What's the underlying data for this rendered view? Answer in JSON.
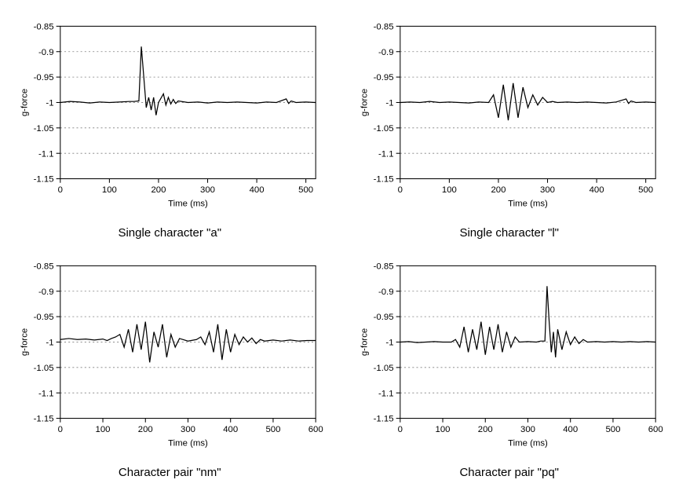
{
  "global": {
    "background_color": "#ffffff",
    "axis_color": "#000000",
    "grid_color": "#808080",
    "text_color": "#000000",
    "line_color": "#000000",
    "tick_font_size": 11,
    "caption_font_size": 15,
    "axis_label_font_size": 11
  },
  "panels": [
    {
      "id": "chart-a",
      "caption": "Single character \"a\"",
      "ylabel": "g-force",
      "xlabel": "Time (ms)",
      "xlim": [
        0,
        520
      ],
      "ylim": [
        -1.15,
        -0.85
      ],
      "xticks": [
        0,
        100,
        200,
        300,
        400,
        500
      ],
      "yticks": [
        -1.15,
        -1.1,
        -1.05,
        -1,
        -0.95,
        -0.9,
        -0.85
      ],
      "ygrid_at": [
        -1.1,
        -1.05,
        -1,
        -0.95,
        -0.9
      ],
      "data": {
        "x": [
          0,
          20,
          40,
          60,
          80,
          100,
          120,
          140,
          150,
          160,
          165,
          170,
          175,
          180,
          185,
          190,
          195,
          200,
          210,
          215,
          220,
          225,
          230,
          235,
          240,
          260,
          280,
          300,
          320,
          340,
          360,
          380,
          400,
          420,
          440,
          460,
          465,
          470,
          480,
          500,
          520
        ],
        "y": [
          -1.0,
          -0.998,
          -0.999,
          -1.001,
          -0.999,
          -1.0,
          -0.999,
          -0.998,
          -0.998,
          -0.997,
          -0.89,
          -0.95,
          -1.01,
          -0.99,
          -1.015,
          -0.99,
          -1.025,
          -1.0,
          -0.983,
          -1.005,
          -0.99,
          -1.003,
          -0.994,
          -1.002,
          -0.997,
          -1.0,
          -0.999,
          -1.001,
          -0.999,
          -1.0,
          -0.999,
          -1.0,
          -1.001,
          -0.999,
          -1.0,
          -0.993,
          -1.002,
          -0.997,
          -1.0,
          -0.999,
          -1.0
        ]
      }
    },
    {
      "id": "chart-l",
      "caption": "Single character \"l\"",
      "ylabel": "g-force",
      "xlabel": "Time (ms)",
      "xlim": [
        0,
        520
      ],
      "ylim": [
        -1.15,
        -0.85
      ],
      "xticks": [
        0,
        100,
        200,
        300,
        400,
        500
      ],
      "yticks": [
        -1.15,
        -1.1,
        -1.05,
        -1,
        -0.95,
        -0.9,
        -0.85
      ],
      "ygrid_at": [
        -1.1,
        -1.05,
        -1,
        -0.95,
        -0.9
      ],
      "data": {
        "x": [
          0,
          20,
          40,
          60,
          80,
          100,
          120,
          140,
          160,
          180,
          190,
          200,
          210,
          220,
          230,
          240,
          250,
          260,
          270,
          280,
          290,
          300,
          310,
          320,
          340,
          360,
          380,
          400,
          420,
          440,
          460,
          465,
          470,
          480,
          500,
          520
        ],
        "y": [
          -1.0,
          -0.999,
          -1.0,
          -0.998,
          -1.0,
          -0.999,
          -1.0,
          -1.001,
          -0.999,
          -1.0,
          -0.985,
          -1.03,
          -0.965,
          -1.035,
          -0.962,
          -1.03,
          -0.97,
          -1.01,
          -0.985,
          -1.005,
          -0.99,
          -1.0,
          -0.998,
          -1.0,
          -0.999,
          -1.0,
          -0.999,
          -1.0,
          -1.001,
          -0.999,
          -0.993,
          -1.002,
          -0.997,
          -1.0,
          -0.999,
          -1.0
        ]
      }
    },
    {
      "id": "chart-nm",
      "caption": "Character pair \"nm\"",
      "ylabel": "g-force",
      "xlabel": "Time (ms)",
      "xlim": [
        0,
        600
      ],
      "ylim": [
        -1.15,
        -0.85
      ],
      "xticks": [
        0,
        100,
        200,
        300,
        400,
        500,
        600
      ],
      "yticks": [
        -1.15,
        -1.1,
        -1.05,
        -1,
        -0.95,
        -0.9,
        -0.85
      ],
      "ygrid_at": [
        -1.1,
        -1.05,
        -1,
        -0.95,
        -0.9
      ],
      "data": {
        "x": [
          0,
          20,
          40,
          60,
          80,
          100,
          110,
          120,
          130,
          140,
          150,
          160,
          170,
          180,
          190,
          200,
          210,
          220,
          230,
          240,
          250,
          260,
          270,
          280,
          300,
          320,
          330,
          340,
          350,
          360,
          370,
          380,
          390,
          400,
          410,
          420,
          430,
          440,
          450,
          460,
          470,
          480,
          500,
          520,
          540,
          560,
          580,
          600
        ],
        "y": [
          -0.995,
          -0.993,
          -0.995,
          -0.994,
          -0.996,
          -0.994,
          -0.997,
          -0.993,
          -0.99,
          -0.985,
          -1.01,
          -0.975,
          -1.02,
          -0.965,
          -1.015,
          -0.96,
          -1.04,
          -0.98,
          -1.01,
          -0.965,
          -1.03,
          -0.985,
          -1.01,
          -0.993,
          -0.998,
          -0.995,
          -0.99,
          -1.005,
          -0.98,
          -1.02,
          -0.965,
          -1.035,
          -0.975,
          -1.02,
          -0.985,
          -1.005,
          -0.99,
          -1.0,
          -0.992,
          -1.003,
          -0.995,
          -0.998,
          -0.996,
          -0.998,
          -0.996,
          -0.998,
          -0.997,
          -0.997
        ]
      }
    },
    {
      "id": "chart-pq",
      "caption": "Character pair \"pq\"",
      "ylabel": "g-force",
      "xlabel": "Time (ms)",
      "xlim": [
        0,
        600
      ],
      "ylim": [
        -1.15,
        -0.85
      ],
      "xticks": [
        0,
        100,
        200,
        300,
        400,
        500,
        600
      ],
      "yticks": [
        -1.15,
        -1.1,
        -1.05,
        -1,
        -0.95,
        -0.9,
        -0.85
      ],
      "ygrid_at": [
        -1.1,
        -1.05,
        -1,
        -0.95,
        -0.9
      ],
      "data": {
        "x": [
          0,
          20,
          40,
          60,
          80,
          100,
          120,
          130,
          140,
          150,
          160,
          170,
          180,
          190,
          200,
          210,
          220,
          230,
          240,
          250,
          260,
          270,
          280,
          300,
          320,
          330,
          340,
          345,
          350,
          355,
          360,
          365,
          370,
          380,
          390,
          400,
          410,
          420,
          430,
          440,
          460,
          480,
          500,
          520,
          540,
          560,
          580,
          600
        ],
        "y": [
          -1.0,
          -0.999,
          -1.001,
          -1.0,
          -0.999,
          -1.0,
          -1.0,
          -0.995,
          -1.01,
          -0.97,
          -1.02,
          -0.975,
          -1.015,
          -0.96,
          -1.025,
          -0.97,
          -1.015,
          -0.965,
          -1.02,
          -0.98,
          -1.01,
          -0.99,
          -1.0,
          -0.999,
          -1.0,
          -0.998,
          -0.998,
          -0.89,
          -0.96,
          -1.02,
          -0.98,
          -1.03,
          -0.975,
          -1.015,
          -0.98,
          -1.005,
          -0.99,
          -1.003,
          -0.995,
          -1.0,
          -0.999,
          -1.0,
          -0.999,
          -1.0,
          -0.999,
          -1.0,
          -0.999,
          -1.0
        ]
      }
    }
  ]
}
